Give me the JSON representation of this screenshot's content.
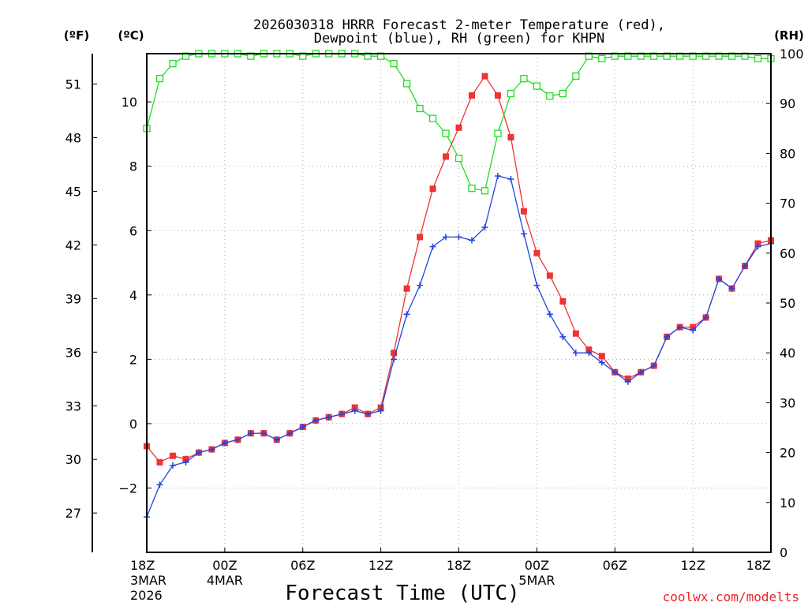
{
  "chart_data": {
    "type": "line",
    "title_line1": "2026030318 HRRR Forecast 2-meter Temperature (red),",
    "title_line2": "Dewpoint (blue), RH (green) for KHPN",
    "xlabel": "Forecast Time (UTC)",
    "unit_f": "(ºF)",
    "unit_c": "(ºC)",
    "unit_rh": "(RH)",
    "credit": "coolwx.com/modelts",
    "colors": {
      "temperature": "#ee3333",
      "dewpoint": "#2244dd",
      "rh": "#22dd22"
    },
    "x": [
      0,
      1,
      2,
      3,
      4,
      5,
      6,
      7,
      8,
      9,
      10,
      11,
      12,
      13,
      14,
      15,
      16,
      17,
      18,
      19,
      20,
      21,
      22,
      23,
      24,
      25,
      26,
      27,
      28,
      29,
      30,
      31,
      32,
      33,
      34,
      35,
      36,
      37,
      38,
      39,
      40,
      41,
      42,
      43,
      44,
      45,
      46,
      47,
      48
    ],
    "xlim": [
      0,
      48
    ],
    "ylim_c": [
      -4,
      11.5
    ],
    "ylim_rh": [
      0,
      100
    ],
    "x_ticks": [
      {
        "x": 0,
        "label": "18Z",
        "sub1": "3MAR",
        "sub2": "2026"
      },
      {
        "x": 6,
        "label": "00Z",
        "sub1": "4MAR",
        "sub2": ""
      },
      {
        "x": 12,
        "label": "06Z",
        "sub1": "",
        "sub2": ""
      },
      {
        "x": 18,
        "label": "12Z",
        "sub1": "",
        "sub2": ""
      },
      {
        "x": 24,
        "label": "18Z",
        "sub1": "",
        "sub2": ""
      },
      {
        "x": 30,
        "label": "00Z",
        "sub1": "5MAR",
        "sub2": ""
      },
      {
        "x": 36,
        "label": "06Z",
        "sub1": "",
        "sub2": ""
      },
      {
        "x": 42,
        "label": "12Z",
        "sub1": "",
        "sub2": ""
      },
      {
        "x": 48,
        "label": "18Z",
        "sub1": "",
        "sub2": ""
      }
    ],
    "c_ticks": [
      -2,
      0,
      2,
      4,
      6,
      8,
      10
    ],
    "f_ticks": [
      27,
      30,
      33,
      36,
      39,
      42,
      45,
      48,
      51
    ],
    "rh_ticks": [
      0,
      10,
      20,
      30,
      40,
      50,
      60,
      70,
      80,
      90,
      100
    ],
    "series": [
      {
        "name": "Temperature",
        "key": "temperature",
        "marker": "square",
        "values": [
          -0.7,
          -1.2,
          -1.0,
          -1.1,
          -0.9,
          -0.8,
          -0.6,
          -0.5,
          -0.3,
          -0.3,
          -0.5,
          -0.3,
          -0.1,
          0.1,
          0.2,
          0.3,
          0.5,
          0.3,
          0.5,
          2.2,
          4.2,
          5.8,
          7.3,
          8.3,
          9.2,
          10.2,
          10.8,
          10.2,
          8.9,
          6.6,
          5.3,
          4.6,
          3.8,
          2.8,
          2.3,
          2.1,
          1.6,
          1.4,
          1.6,
          1.8,
          2.7,
          3.0,
          3.0,
          3.3,
          4.5,
          4.2,
          4.9,
          5.6,
          5.7
        ]
      },
      {
        "name": "Dewpoint",
        "key": "dewpoint",
        "marker": "plus",
        "values": [
          -2.9,
          -1.9,
          -1.3,
          -1.2,
          -0.9,
          -0.8,
          -0.6,
          -0.5,
          -0.3,
          -0.3,
          -0.5,
          -0.3,
          -0.1,
          0.1,
          0.2,
          0.3,
          0.4,
          0.3,
          0.4,
          2.0,
          3.4,
          4.3,
          5.5,
          5.8,
          5.8,
          5.7,
          6.1,
          7.7,
          7.6,
          5.9,
          4.3,
          3.4,
          2.7,
          2.2,
          2.2,
          1.9,
          1.6,
          1.3,
          1.6,
          1.8,
          2.7,
          3.0,
          2.9,
          3.3,
          4.5,
          4.2,
          4.9,
          5.5,
          5.6
        ]
      },
      {
        "name": "RH",
        "key": "rh",
        "marker": "open-square",
        "values": [
          85,
          95,
          98,
          99.5,
          100,
          100,
          100,
          100,
          99.5,
          100,
          100,
          100,
          99.5,
          100,
          100,
          100,
          100,
          99.5,
          99.5,
          98,
          94,
          89,
          87,
          84,
          79,
          73,
          72.5,
          84,
          92,
          95,
          93.5,
          91.5,
          92,
          95.5,
          99.5,
          99,
          99.5,
          99.5,
          99.5,
          99.5,
          99.5,
          99.5,
          99.5,
          99.5,
          99.5,
          99.5,
          99.5,
          99,
          99
        ]
      }
    ]
  }
}
